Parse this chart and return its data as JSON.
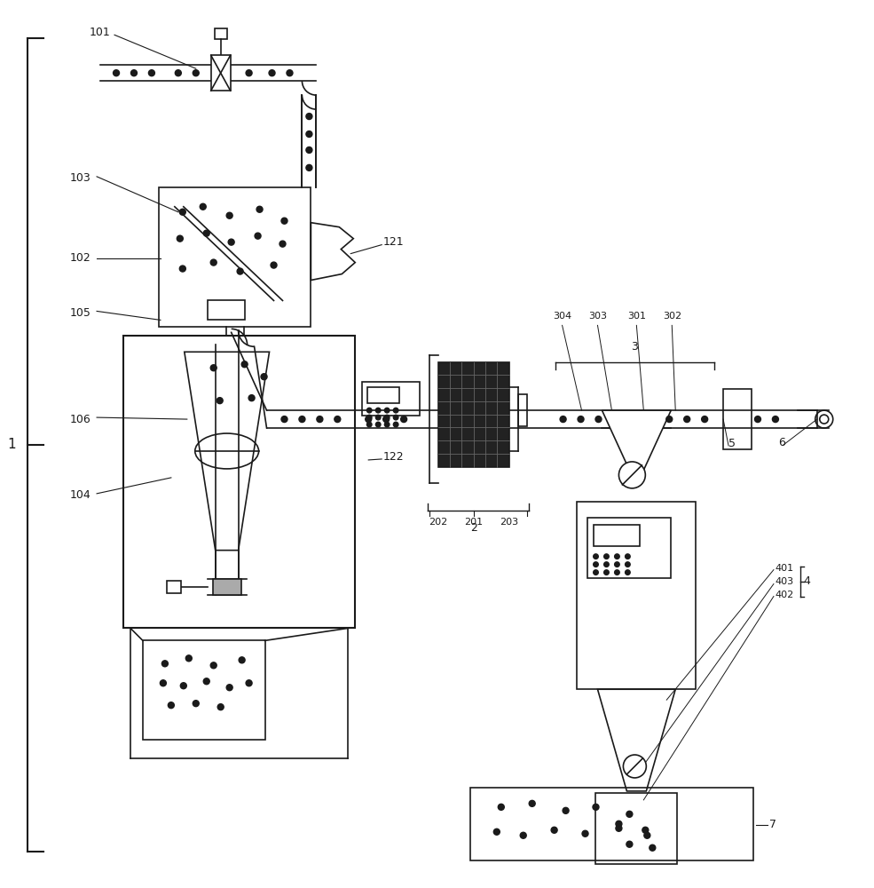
{
  "bg_color": "#ffffff",
  "line_color": "#1a1a1a",
  "lw": 1.2,
  "fig_width": 9.85,
  "fig_height": 10.0
}
